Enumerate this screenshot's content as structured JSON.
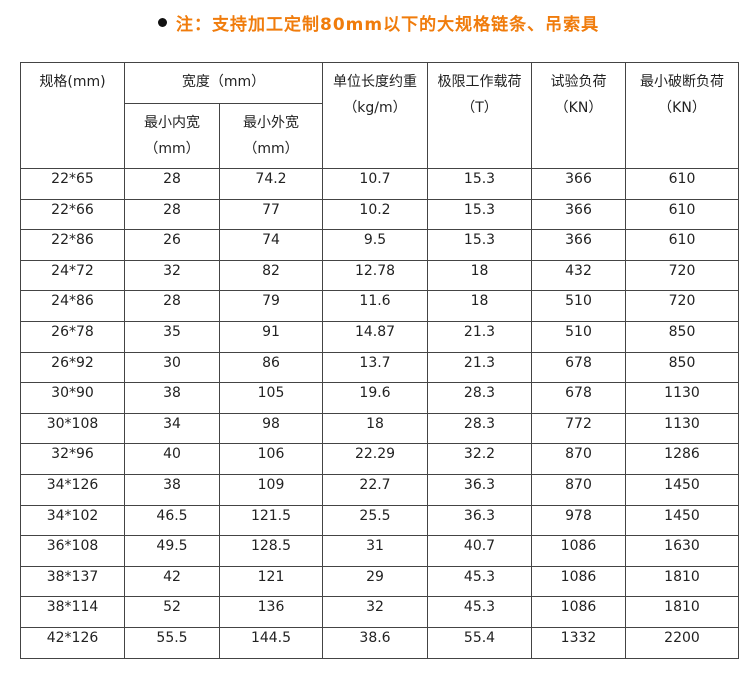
{
  "note": {
    "text": "注：支持加工定制80mm以下的大规格链条、吊索具"
  },
  "headers": {
    "spec": "规格(mm)",
    "width_group": "宽度（mm）",
    "inner": [
      "最小内宽",
      "（mm）"
    ],
    "outer": [
      "最小外宽",
      "（mm）"
    ],
    "weight": [
      "单位长度约重",
      "（kg/m）"
    ],
    "wll": [
      "极限工作载荷",
      "（T）"
    ],
    "proof": [
      "试验负荷",
      "（KN）"
    ],
    "break": [
      "最小破断负荷",
      "（KN）"
    ]
  },
  "rows": [
    [
      "22*65",
      "28",
      "74.2",
      "10.7",
      "15.3",
      "366",
      "610"
    ],
    [
      "22*66",
      "28",
      "77",
      "10.2",
      "15.3",
      "366",
      "610"
    ],
    [
      "22*86",
      "26",
      "74",
      "9.5",
      "15.3",
      "366",
      "610"
    ],
    [
      "24*72",
      "32",
      "82",
      "12.78",
      "18",
      "432",
      "720"
    ],
    [
      "24*86",
      "28",
      "79",
      "11.6",
      "18",
      "510",
      "720"
    ],
    [
      "26*78",
      "35",
      "91",
      "14.87",
      "21.3",
      "510",
      "850"
    ],
    [
      "26*92",
      "30",
      "86",
      "13.7",
      "21.3",
      "678",
      "850"
    ],
    [
      "30*90",
      "38",
      "105",
      "19.6",
      "28.3",
      "678",
      "1130"
    ],
    [
      "30*108",
      "34",
      "98",
      "18",
      "28.3",
      "772",
      "1130"
    ],
    [
      "32*96",
      "40",
      "106",
      "22.29",
      "32.2",
      "870",
      "1286"
    ],
    [
      "34*126",
      "38",
      "109",
      "22.7",
      "36.3",
      "870",
      "1450"
    ],
    [
      "34*102",
      "46.5",
      "121.5",
      "25.5",
      "36.3",
      "978",
      "1450"
    ],
    [
      "36*108",
      "49.5",
      "128.5",
      "31",
      "40.7",
      "1086",
      "1630"
    ],
    [
      "38*137",
      "42",
      "121",
      "29",
      "45.3",
      "1086",
      "1810"
    ],
    [
      "38*114",
      "52",
      "136",
      "32",
      "45.3",
      "1086",
      "1810"
    ],
    [
      "42*126",
      "55.5",
      "144.5",
      "38.6",
      "55.4",
      "1332",
      "2200"
    ]
  ]
}
